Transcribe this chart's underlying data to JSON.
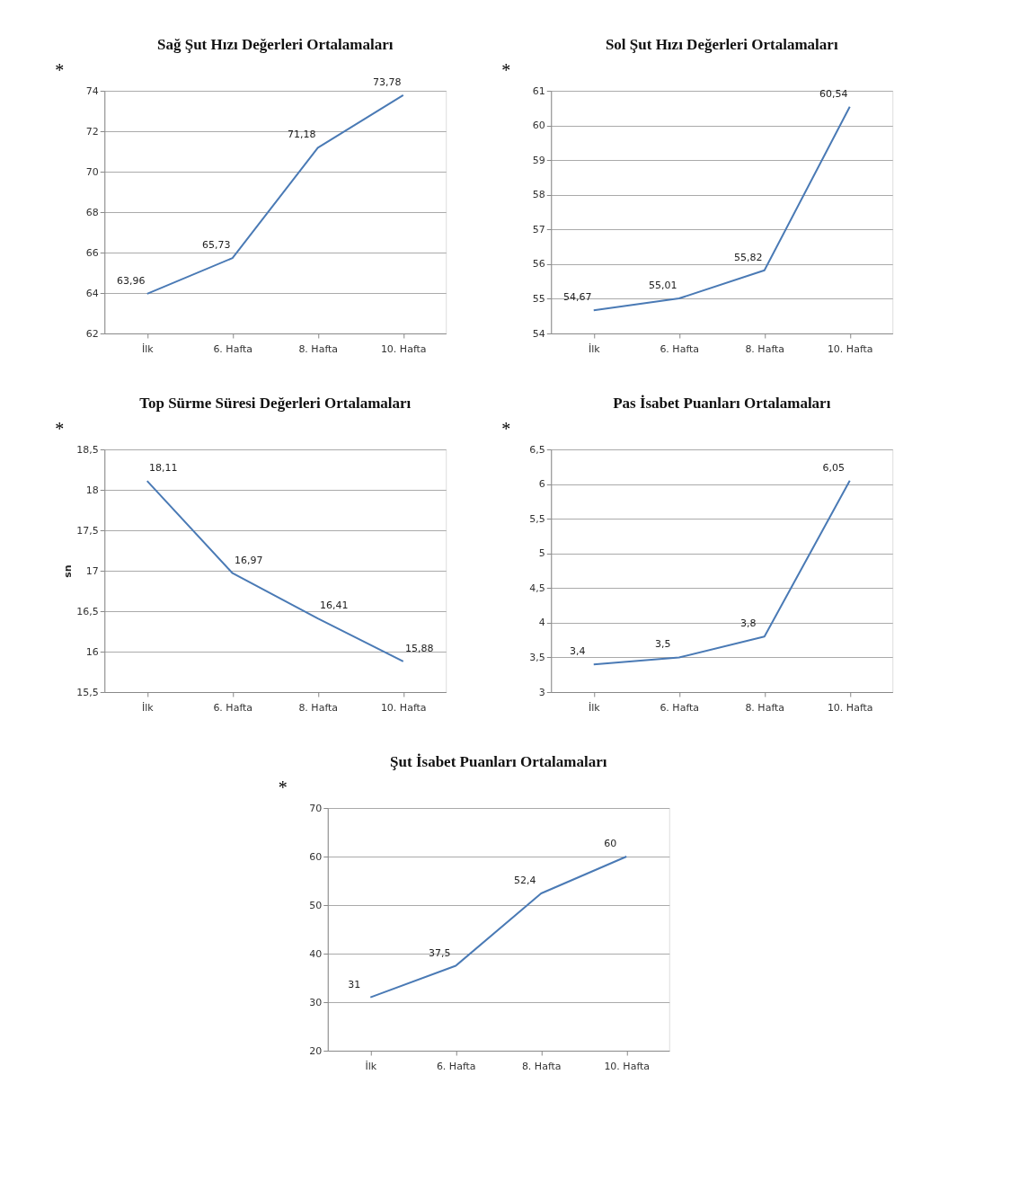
{
  "chart_data": [
    {
      "type": "line",
      "title": "Sağ Şut Hızı Değerleri Ortalamaları",
      "annotations": [
        "*"
      ],
      "categories": [
        "İlk",
        "6. Hafta",
        "8. Hafta",
        "10. Hafta"
      ],
      "values": [
        63.96,
        65.73,
        71.18,
        73.78
      ],
      "value_labels": [
        "63,96",
        "65,73",
        "71,18",
        "73,78"
      ],
      "color": "#4a7ab5",
      "ylim": [
        62,
        74
      ],
      "yticks": [
        62,
        64,
        66,
        68,
        70,
        72,
        74
      ],
      "grid": "y"
    },
    {
      "type": "line",
      "title": "Sol Şut Hızı Değerleri Ortalamaları",
      "annotations": [
        "*"
      ],
      "categories": [
        "İlk",
        "6. Hafta",
        "8. Hafta",
        "10. Hafta"
      ],
      "values": [
        54.67,
        55.01,
        55.82,
        60.54
      ],
      "value_labels": [
        "54,67",
        "55,01",
        "55,82",
        "60,54"
      ],
      "color": "#4a7ab5",
      "ylim": [
        54,
        61
      ],
      "yticks": [
        54,
        55,
        56,
        57,
        58,
        59,
        60,
        61
      ],
      "grid": "y"
    },
    {
      "type": "line",
      "title": "Top Sürme Süresi Değerleri Ortalamaları",
      "annotations": [
        "*"
      ],
      "ylabel": "sn",
      "categories": [
        "İlk",
        "6. Hafta",
        "8. Hafta",
        "10. Hafta"
      ],
      "values": [
        18.11,
        16.97,
        16.41,
        15.88
      ],
      "value_labels": [
        "18,11",
        "16,97",
        "16,41",
        "15,88"
      ],
      "color": "#4a7ab5",
      "ylim": [
        15.5,
        18.5
      ],
      "yticks": [
        {
          "value": 15.5,
          "label": "15,5"
        },
        16,
        {
          "value": 16.5,
          "label": "16,5"
        },
        17,
        {
          "value": 17.5,
          "label": "17,5"
        },
        18,
        {
          "value": 18.5,
          "label": "18,5"
        }
      ],
      "grid": "y"
    },
    {
      "type": "line",
      "title": "Pas İsabet Puanları Ortalamaları",
      "annotations": [
        "*"
      ],
      "categories": [
        "İlk",
        "6. Hafta",
        "8. Hafta",
        "10. Hafta"
      ],
      "values": [
        3.4,
        3.5,
        3.8,
        6.05
      ],
      "value_labels": [
        "3,4",
        "3,5",
        "3,8",
        "6,05"
      ],
      "color": "#4a7ab5",
      "ylim": [
        3,
        6.5
      ],
      "yticks": [
        3,
        {
          "value": 3.5,
          "label": "3,5"
        },
        4,
        {
          "value": 4.5,
          "label": "4,5"
        },
        5,
        {
          "value": 5.5,
          "label": "5,5"
        },
        6,
        {
          "value": 6.5,
          "label": "6,5"
        }
      ],
      "grid": "y"
    },
    {
      "type": "line",
      "title": "Şut İsabet Puanları Ortalamaları",
      "annotations": [
        "*"
      ],
      "categories": [
        "İlk",
        "6. Hafta",
        "8. Hafta",
        "10. Hafta"
      ],
      "values": [
        31,
        37.5,
        52.4,
        60
      ],
      "value_labels": [
        "31",
        "37,5",
        "52,4",
        "60"
      ],
      "color": "#4a7ab5",
      "ylim": [
        20,
        70
      ],
      "yticks": [
        20,
        30,
        40,
        50,
        60,
        70
      ],
      "grid": "y"
    }
  ]
}
